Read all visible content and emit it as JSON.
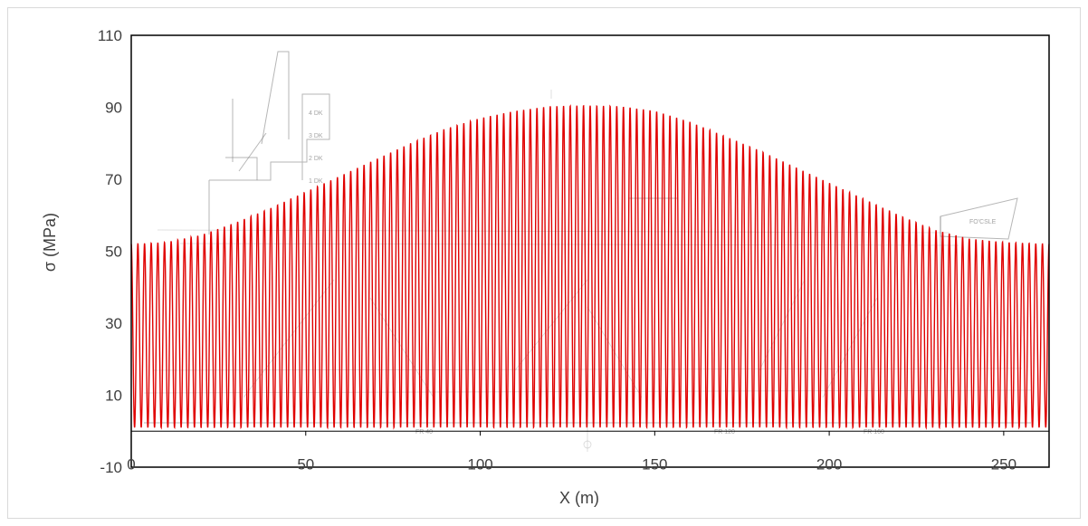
{
  "chart_data": {
    "type": "line",
    "title": "",
    "xlabel": "X (m)",
    "ylabel": "σ (MPa)",
    "xlim": [
      0,
      263
    ],
    "ylim": [
      -10,
      110
    ],
    "x_ticks": [
      "0",
      "50",
      "100",
      "150",
      "200",
      "250"
    ],
    "x_tick_values": [
      0,
      50,
      100,
      150,
      200,
      250
    ],
    "y_ticks": [
      "-10",
      "10",
      "30",
      "50",
      "70",
      "90",
      "110"
    ],
    "y_tick_values": [
      -10,
      10,
      30,
      50,
      70,
      90,
      110
    ],
    "grid": false,
    "legend": "none",
    "background": "faint ship general-arrangement drawing",
    "series": [
      {
        "color": "#e00000",
        "style": "oscillating stress signal",
        "cycle_count": 138,
        "min_value": 1,
        "envelope_max": {
          "x": [
            0,
            10,
            20,
            30,
            40,
            50,
            60,
            70,
            80,
            90,
            100,
            110,
            120,
            130,
            140,
            150,
            160,
            170,
            180,
            190,
            200,
            210,
            220,
            230,
            240,
            250,
            263
          ],
          "y": [
            52,
            52.5,
            54.5,
            58,
            62,
            66.5,
            71,
            75.5,
            80,
            84,
            87,
            89,
            90.3,
            90.5,
            90.3,
            89,
            86,
            82,
            78,
            73.5,
            69,
            64.5,
            60,
            56,
            53.5,
            52.5,
            52
          ]
        }
      }
    ]
  }
}
